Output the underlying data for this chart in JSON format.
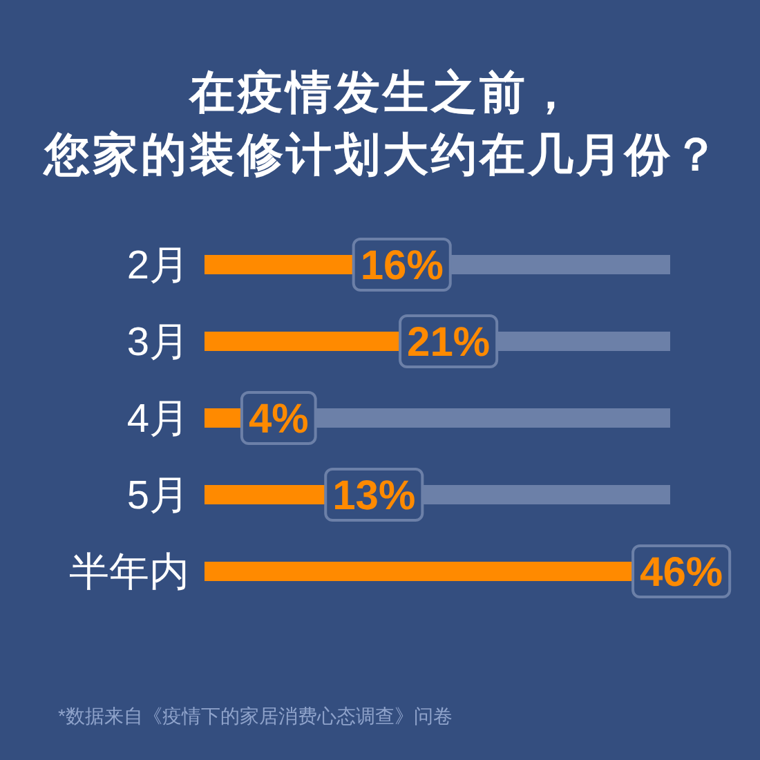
{
  "chart_data": {
    "type": "bar",
    "orientation": "horizontal",
    "stacked": true,
    "title": "在疫情发生之前，您家的装修计划大约在几月份？",
    "categories": [
      "2月",
      "3月",
      "4月",
      "5月",
      "半年内"
    ],
    "series": [
      {
        "color": "#ff8a00",
        "values": [
          16,
          21,
          4,
          13,
          46
        ],
        "value_labels": [
          "16%",
          "21%",
          "4%",
          "13%",
          "46%"
        ]
      },
      {
        "color": "#6c80a8",
        "values": [
          34,
          29,
          46,
          37,
          null
        ]
      }
    ],
    "xlim": [
      0,
      50
    ],
    "tick_labels": "y",
    "annotations": [
      "*数据来自《疫情下的家居消费心态调查》问卷"
    ]
  }
}
